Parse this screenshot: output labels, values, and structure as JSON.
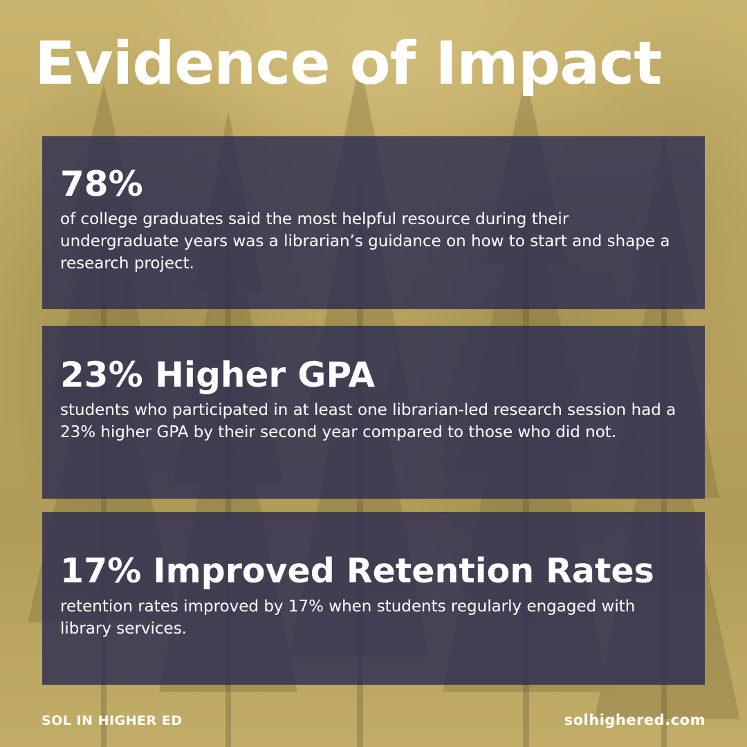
{
  "title": "Evidence of Impact",
  "stats": [
    {
      "headline": "78%",
      "description": "of college graduates said the most helpful resource during their undergraduate years was a librarian’s guidance on how to start and shape a research project."
    },
    {
      "headline": "23% Higher GPA",
      "description": "students who participated in at least one librarian-led research session had a 23% higher GPA by their second year compared to those who did not."
    },
    {
      "headline": "17% Improved Retention Rates",
      "description": "retention rates improved by 17% when students regularly engaged with library services."
    }
  ],
  "footer": {
    "brand": "SOL IN HIGHER ED",
    "website": "solhighered.com"
  },
  "colors": {
    "background": "#bba660",
    "card": "#2b2b52",
    "text": "#ffffff"
  }
}
